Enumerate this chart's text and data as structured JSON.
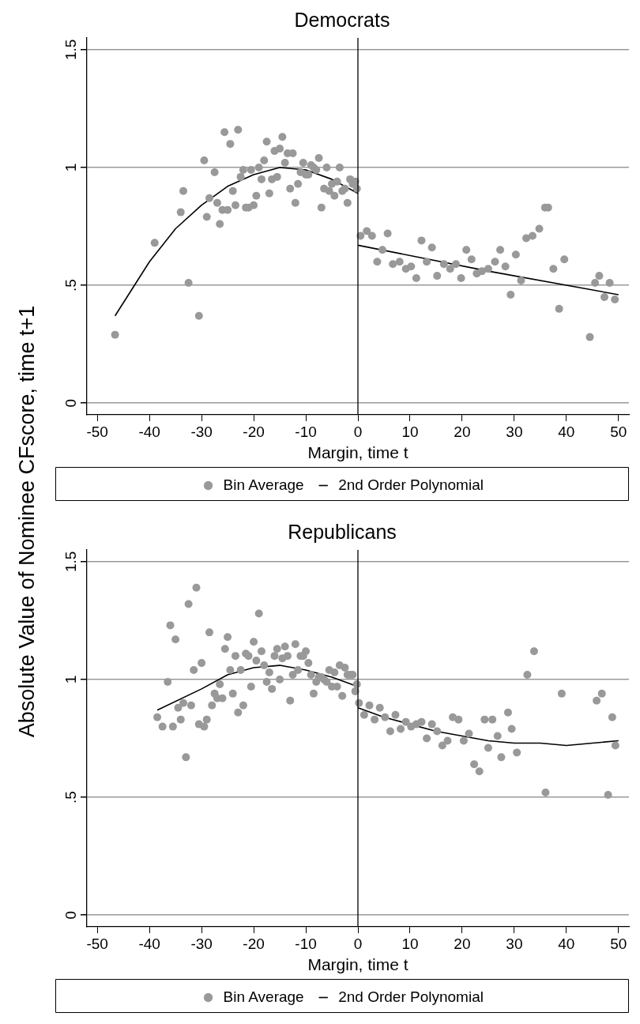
{
  "chart_data": [
    {
      "type": "scatter",
      "title": "Democrats",
      "xlabel": "Margin, time t",
      "ylabel": "Absolute Value of Nominee CFscore, time t+1",
      "xlim": [
        -52,
        52
      ],
      "xticks": [
        -50,
        -40,
        -30,
        -20,
        -10,
        0,
        10,
        20,
        30,
        40,
        50
      ],
      "ylim": [
        -0.05,
        1.55
      ],
      "yticks": [
        0,
        {
          "value": 0.5,
          "label": ".5"
        },
        1,
        1.5
      ],
      "grid": "y",
      "legend": "bottom",
      "ref_lines": [
        {
          "axis": "x",
          "value": 0,
          "color": "#000000"
        }
      ],
      "series": [
        {
          "name": "Bin Average",
          "type": "scatter",
          "marker": "circle",
          "color": "#999999",
          "x": [
            -46.6,
            -39,
            -34,
            -33.5,
            -32.5,
            -30.5,
            -29.5,
            -29,
            -28.5,
            -27.5,
            -27,
            -26.5,
            -26,
            -25.6,
            -25,
            -24.5,
            -24,
            -23.5,
            -23,
            -22.5,
            -22,
            -21.5,
            -21,
            -20.5,
            -20,
            -19.5,
            -19,
            -18.5,
            -18,
            -17.5,
            -17,
            -16.5,
            -16,
            -15.5,
            -15,
            -14.5,
            -14,
            -13.5,
            -13,
            -12.5,
            -12,
            -11.5,
            -11,
            -10.5,
            -10,
            -9.5,
            -9,
            -8.5,
            -8,
            -7.5,
            -7,
            -6.5,
            -6,
            -5.5,
            -5,
            -4.5,
            -4,
            -3.5,
            -3,
            -2.5,
            -2,
            -1.5,
            -1,
            -0.5,
            -0.2,
            0.5,
            1.7,
            2.7,
            3.7,
            4.7,
            5.7,
            6.7,
            8,
            9.2,
            10.2,
            11.2,
            12.2,
            13.2,
            14.2,
            15.2,
            16.5,
            17.7,
            18.8,
            19.8,
            20.8,
            21.8,
            22.8,
            23.8,
            25,
            26.3,
            27.3,
            28.3,
            29.3,
            30.3,
            31.3,
            32.3,
            33.5,
            34.8,
            35.9,
            36.5,
            37.5,
            38.6,
            39.6,
            44.5,
            45.5,
            46.3,
            47.3,
            48.3,
            49.3
          ],
          "values": [
            0.29,
            0.68,
            0.81,
            0.9,
            0.51,
            0.37,
            1.03,
            0.79,
            0.87,
            0.98,
            0.85,
            0.76,
            0.82,
            1.15,
            0.82,
            1.1,
            0.9,
            0.84,
            1.16,
            0.96,
            0.99,
            0.83,
            0.83,
            0.99,
            0.84,
            0.88,
            1,
            0.95,
            1.03,
            1.11,
            0.89,
            0.95,
            1.07,
            0.96,
            1.08,
            1.13,
            1.02,
            1.06,
            0.91,
            1.06,
            0.85,
            0.93,
            0.98,
            1.02,
            0.97,
            0.97,
            1.01,
            1,
            0.99,
            1.04,
            0.83,
            0.91,
            1,
            0.9,
            0.93,
            0.88,
            0.94,
            1,
            0.9,
            0.91,
            0.85,
            0.95,
            0.93,
            0.94,
            0.91,
            0.71,
            0.73,
            0.71,
            0.6,
            0.65,
            0.72,
            0.59,
            0.6,
            0.57,
            0.58,
            0.53,
            0.69,
            0.6,
            0.66,
            0.54,
            0.59,
            0.57,
            0.59,
            0.53,
            0.65,
            0.61,
            0.55,
            0.56,
            0.57,
            0.6,
            0.65,
            0.58,
            0.46,
            0.63,
            0.52,
            0.7,
            0.71,
            0.74,
            0.83,
            0.83,
            0.57,
            0.4,
            0.61,
            0.28,
            0.51,
            0.54,
            0.45,
            0.51,
            0.44
          ]
        },
        {
          "name": "2nd Order Polynomial",
          "type": "line",
          "marker": "none",
          "line_style": "solid",
          "color": "#000000",
          "x": [
            -46.6,
            -40,
            -35,
            -30,
            -25,
            -20,
            -15,
            -10,
            -5,
            0
          ],
          "values": [
            0.37,
            0.6,
            0.74,
            0.84,
            0.92,
            0.97,
            1,
            0.99,
            0.95,
            0.89
          ]
        },
        {
          "type": "line",
          "marker": "none",
          "line_style": "solid",
          "color": "#000000",
          "x": [
            0,
            25,
            50
          ],
          "values": [
            0.67,
            0.56,
            0.46
          ]
        }
      ]
    },
    {
      "type": "scatter",
      "title": "Republicans",
      "xlabel": "Margin, time t",
      "xlim": [
        -52,
        52
      ],
      "xticks": [
        -50,
        -40,
        -30,
        -20,
        -10,
        0,
        10,
        20,
        30,
        40,
        50
      ],
      "ylim": [
        -0.05,
        1.55
      ],
      "yticks": [
        0,
        {
          "value": 0.5,
          "label": ".5"
        },
        1,
        1.5
      ],
      "grid": "y",
      "legend": "bottom",
      "ref_lines": [
        {
          "axis": "x",
          "value": 0,
          "color": "#000000"
        }
      ],
      "series": [
        {
          "name": "Bin Average",
          "type": "scatter",
          "marker": "circle",
          "color": "#999999",
          "x": [
            -38.5,
            -37.5,
            -36.5,
            -36,
            -35.5,
            -35,
            -34.5,
            -34,
            -33.5,
            -33,
            -32.5,
            -32,
            -31.5,
            -31,
            -30.5,
            -30,
            -29.5,
            -29,
            -28.5,
            -28,
            -27.5,
            -27,
            -26.5,
            -26,
            -25.5,
            -25,
            -24.5,
            -24,
            -23.5,
            -23,
            -22.5,
            -22,
            -21.5,
            -21,
            -20.5,
            -20,
            -19.5,
            -19,
            -18.5,
            -18,
            -17.5,
            -17,
            -16.5,
            -16,
            -15.5,
            -15,
            -14.5,
            -14,
            -13.5,
            -13,
            -12.5,
            -12,
            -11.5,
            -11,
            -10.5,
            -10,
            -9.5,
            -9,
            -8.5,
            -8,
            -7.5,
            -7,
            -6.5,
            -6,
            -5.5,
            -5,
            -4.5,
            -4,
            -3.5,
            -3,
            -2.5,
            -2,
            -1.5,
            -1,
            -0.5,
            -0.2,
            0.2,
            1.2,
            2.2,
            3.2,
            4.2,
            5.2,
            6.2,
            7.2,
            8.2,
            9.2,
            10.2,
            11.2,
            12.2,
            13.2,
            14.2,
            15.2,
            16.2,
            17.2,
            18.2,
            19.3,
            20.3,
            21.3,
            22.3,
            23.3,
            24.3,
            25,
            25.8,
            26.8,
            27.5,
            28.8,
            29.5,
            30.5,
            32.5,
            33.8,
            36,
            39.1,
            45.8,
            46.8,
            48,
            48.8,
            49.4
          ],
          "values": [
            0.84,
            0.8,
            0.99,
            1.23,
            0.8,
            1.17,
            0.88,
            0.83,
            0.9,
            0.67,
            1.32,
            0.89,
            1.04,
            1.39,
            0.81,
            1.07,
            0.8,
            0.83,
            1.2,
            0.89,
            0.94,
            0.92,
            0.98,
            0.92,
            1.13,
            1.18,
            1.04,
            0.94,
            1.1,
            0.86,
            1.04,
            0.89,
            1.11,
            1.1,
            0.97,
            1.16,
            1.08,
            1.28,
            1.12,
            1.06,
            0.99,
            1.03,
            0.96,
            1.1,
            1.13,
            1,
            1.09,
            1.14,
            1.1,
            0.91,
            1.02,
            1.15,
            1.04,
            1.1,
            1.1,
            1.12,
            1.07,
            1.02,
            0.94,
            0.99,
            1.01,
            1.01,
            1,
            0.99,
            1.04,
            0.97,
            1.03,
            0.97,
            1.06,
            0.93,
            1.05,
            1.02,
            1.02,
            1.02,
            0.95,
            0.98,
            0.9,
            0.85,
            0.89,
            0.83,
            0.88,
            0.84,
            0.78,
            0.85,
            0.79,
            0.82,
            0.8,
            0.81,
            0.82,
            0.75,
            0.81,
            0.78,
            0.72,
            0.74,
            0.84,
            0.83,
            0.74,
            0.77,
            0.64,
            0.61,
            0.83,
            0.71,
            0.83,
            0.76,
            0.67,
            0.86,
            0.79,
            0.69,
            1.02,
            1.12,
            0.52,
            0.94,
            0.91,
            0.94,
            0.51,
            0.84,
            0.72
          ]
        },
        {
          "name": "2nd Order Polynomial",
          "type": "line",
          "marker": "none",
          "line_style": "solid",
          "color": "#000000",
          "x": [
            -38.5,
            -30,
            -25,
            -20,
            -15,
            -10,
            -5,
            0
          ],
          "values": [
            0.87,
            0.96,
            1.02,
            1.05,
            1.06,
            1.04,
            1.01,
            0.97
          ]
        },
        {
          "type": "line",
          "marker": "none",
          "line_style": "solid",
          "color": "#000000",
          "x": [
            0,
            5,
            10,
            15,
            20,
            25,
            30,
            35,
            40,
            45,
            50
          ],
          "values": [
            0.88,
            0.84,
            0.81,
            0.78,
            0.76,
            0.74,
            0.73,
            0.73,
            0.72,
            0.73,
            0.74
          ]
        }
      ]
    }
  ]
}
